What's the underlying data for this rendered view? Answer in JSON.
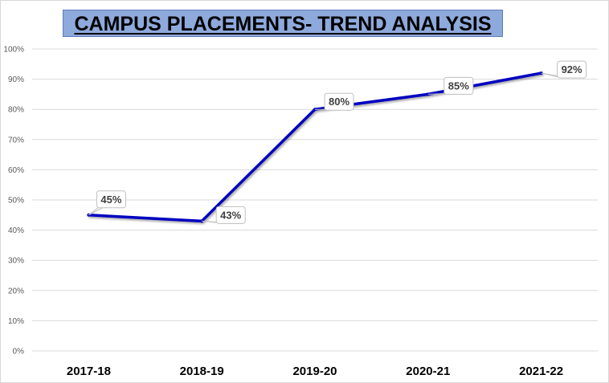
{
  "chart_data": {
    "type": "line",
    "title": "CAMPUS PLACEMENTS- TREND ANALYSIS",
    "categories": [
      "2017-18",
      "2018-19",
      "2019-20",
      "2020-21",
      "2021-22"
    ],
    "series": [
      {
        "values": [
          45,
          43,
          80,
          85,
          92
        ]
      }
    ],
    "data_labels": [
      "45%",
      "43%",
      "80%",
      "85%",
      "92%"
    ],
    "ylim": [
      0,
      100
    ],
    "yticks": [
      0,
      10,
      20,
      30,
      40,
      50,
      60,
      70,
      80,
      90,
      100
    ],
    "ytick_labels": [
      "0%",
      "10%",
      "20%",
      "30%",
      "40%",
      "50%",
      "60%",
      "70%",
      "80%",
      "90%",
      "100%"
    ],
    "grid": true,
    "legend": "none",
    "colors": {
      "line": "#0000c0",
      "title_background": "#8ea9db",
      "grid": "#d9d9d9"
    }
  }
}
